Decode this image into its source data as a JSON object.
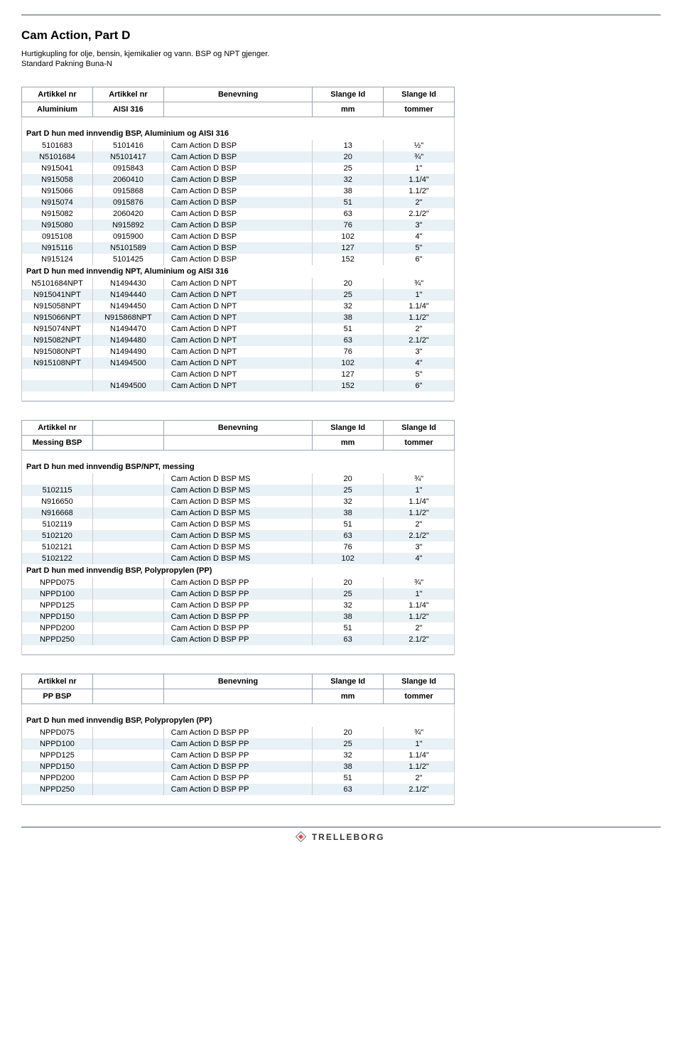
{
  "page": {
    "title": "Cam Action, Part D",
    "subtitle1": "Hurtigkupling for olje, bensin, kjemikalier og vann. BSP og NPT gjenger.",
    "subtitle2": "Standard Pakning Buna-N",
    "footer_brand": "TRELLEBORG"
  },
  "columns": {
    "artikkel": "Artikkel nr",
    "benevning": "Benevning",
    "slange_id": "Slange Id",
    "aluminium": "Aluminium",
    "aisi316": "AISI 316",
    "mm": "mm",
    "tommer": "tommer",
    "messing": "Messing BSP",
    "pp_bsp": "PP BSP"
  },
  "sections": {
    "t1s1": "Part D hun med innvendig BSP, Aluminium og AISI 316",
    "t1s2": "Part D hun med innvendig NPT, Aluminium og AISI 316",
    "t2s1": "Part D hun med innvendig BSP/NPT, messing",
    "t2s2": "Part D hun med innvendig BSP, Polypropylen (PP)",
    "t3s1": "Part D hun med innvendig BSP, Polypropylen (PP)"
  },
  "colors": {
    "stripe": "#e8f1f5",
    "border": "#9ca3af"
  },
  "table1": {
    "rows": [
      {
        "a": "5101683",
        "b": "5101416",
        "d": "Cam Action D BSP",
        "mm": "13",
        "t": "½\""
      },
      {
        "a": "N5101684",
        "b": "N5101417",
        "d": "Cam Action D BSP",
        "mm": "20",
        "t": "¾\""
      },
      {
        "a": "N915041",
        "b": "0915843",
        "d": "Cam Action D BSP",
        "mm": "25",
        "t": "1\""
      },
      {
        "a": "N915058",
        "b": "2060410",
        "d": "Cam Action D BSP",
        "mm": "32",
        "t": "1.1/4\""
      },
      {
        "a": "N915066",
        "b": "0915868",
        "d": "Cam Action D BSP",
        "mm": "38",
        "t": "1.1/2\""
      },
      {
        "a": "N915074",
        "b": "0915876",
        "d": "Cam Action D BSP",
        "mm": "51",
        "t": "2\""
      },
      {
        "a": "N915082",
        "b": "2060420",
        "d": "Cam Action D BSP",
        "mm": "63",
        "t": "2.1/2\""
      },
      {
        "a": "N915080",
        "b": "N915892",
        "d": "Cam Action D BSP",
        "mm": "76",
        "t": "3\""
      },
      {
        "a": "0915108",
        "b": "0915900",
        "d": "Cam Action D BSP",
        "mm": "102",
        "t": "4\""
      },
      {
        "a": "N915116",
        "b": "N5101589",
        "d": "Cam Action D BSP",
        "mm": "127",
        "t": "5\""
      },
      {
        "a": "N915124",
        "b": "5101425",
        "d": "Cam Action D BSP",
        "mm": "152",
        "t": "6\""
      }
    ],
    "rows2": [
      {
        "a": "N5101684NPT",
        "b": "N1494430",
        "d": "Cam Action D NPT",
        "mm": "20",
        "t": "¾\""
      },
      {
        "a": "N915041NPT",
        "b": "N1494440",
        "d": "Cam Action D NPT",
        "mm": "25",
        "t": "1\""
      },
      {
        "a": "N915058NPT",
        "b": "N1494450",
        "d": "Cam Action D NPT",
        "mm": "32",
        "t": "1.1/4\""
      },
      {
        "a": "N915066NPT",
        "b": "N915868NPT",
        "d": "Cam Action D NPT",
        "mm": "38",
        "t": "1.1/2\""
      },
      {
        "a": "N915074NPT",
        "b": "N1494470",
        "d": "Cam Action D NPT",
        "mm": "51",
        "t": "2\""
      },
      {
        "a": "N915082NPT",
        "b": "N1494480",
        "d": "Cam Action D NPT",
        "mm": "63",
        "t": "2.1/2\""
      },
      {
        "a": "N915080NPT",
        "b": "N1494490",
        "d": "Cam Action D NPT",
        "mm": "76",
        "t": "3\""
      },
      {
        "a": "N915108NPT",
        "b": "N1494500",
        "d": "Cam Action D NPT",
        "mm": "102",
        "t": "4\""
      },
      {
        "a": "",
        "b": "",
        "d": "Cam Action D NPT",
        "mm": "127",
        "t": "5\""
      },
      {
        "a": "",
        "b": "N1494500",
        "d": "Cam Action D NPT",
        "mm": "152",
        "t": "6\""
      }
    ]
  },
  "table2": {
    "rows": [
      {
        "a": "",
        "d": "Cam Action D BSP MS",
        "mm": "20",
        "t": "¾\""
      },
      {
        "a": "5102115",
        "d": "Cam Action D BSP MS",
        "mm": "25",
        "t": "1\""
      },
      {
        "a": "N916650",
        "d": "Cam Action D BSP MS",
        "mm": "32",
        "t": "1.1/4\""
      },
      {
        "a": "N916668",
        "d": "Cam Action D BSP MS",
        "mm": "38",
        "t": "1.1/2\""
      },
      {
        "a": "5102119",
        "d": "Cam Action D BSP MS",
        "mm": "51",
        "t": "2\""
      },
      {
        "a": "5102120",
        "d": "Cam Action D BSP MS",
        "mm": "63",
        "t": "2.1/2\""
      },
      {
        "a": "5102121",
        "d": "Cam Action D BSP MS",
        "mm": "76",
        "t": "3\""
      },
      {
        "a": "5102122",
        "d": "Cam Action D BSP MS",
        "mm": "102",
        "t": "4\""
      }
    ],
    "rows2": [
      {
        "a": "NPPD075",
        "d": "Cam Action D BSP PP",
        "mm": "20",
        "t": "¾\""
      },
      {
        "a": "NPPD100",
        "d": "Cam Action D BSP PP",
        "mm": "25",
        "t": "1\""
      },
      {
        "a": "NPPD125",
        "d": "Cam Action D BSP PP",
        "mm": "32",
        "t": "1.1/4\""
      },
      {
        "a": "NPPD150",
        "d": "Cam Action D BSP PP",
        "mm": "38",
        "t": "1.1/2\""
      },
      {
        "a": "NPPD200",
        "d": "Cam Action D BSP PP",
        "mm": "51",
        "t": "2\""
      },
      {
        "a": "NPPD250",
        "d": "Cam Action D BSP PP",
        "mm": "63",
        "t": "2.1/2\""
      }
    ]
  },
  "table3": {
    "rows": [
      {
        "a": "NPPD075",
        "d": "Cam Action D BSP PP",
        "mm": "20",
        "t": "¾\""
      },
      {
        "a": "NPPD100",
        "d": "Cam Action D BSP PP",
        "mm": "25",
        "t": "1\""
      },
      {
        "a": "NPPD125",
        "d": "Cam Action D BSP PP",
        "mm": "32",
        "t": "1.1/4\""
      },
      {
        "a": "NPPD150",
        "d": "Cam Action D BSP PP",
        "mm": "38",
        "t": "1.1/2\""
      },
      {
        "a": "NPPD200",
        "d": "Cam Action D BSP PP",
        "mm": "51",
        "t": "2\""
      },
      {
        "a": "NPPD250",
        "d": "Cam Action D BSP PP",
        "mm": "63",
        "t": "2.1/2\""
      }
    ]
  }
}
